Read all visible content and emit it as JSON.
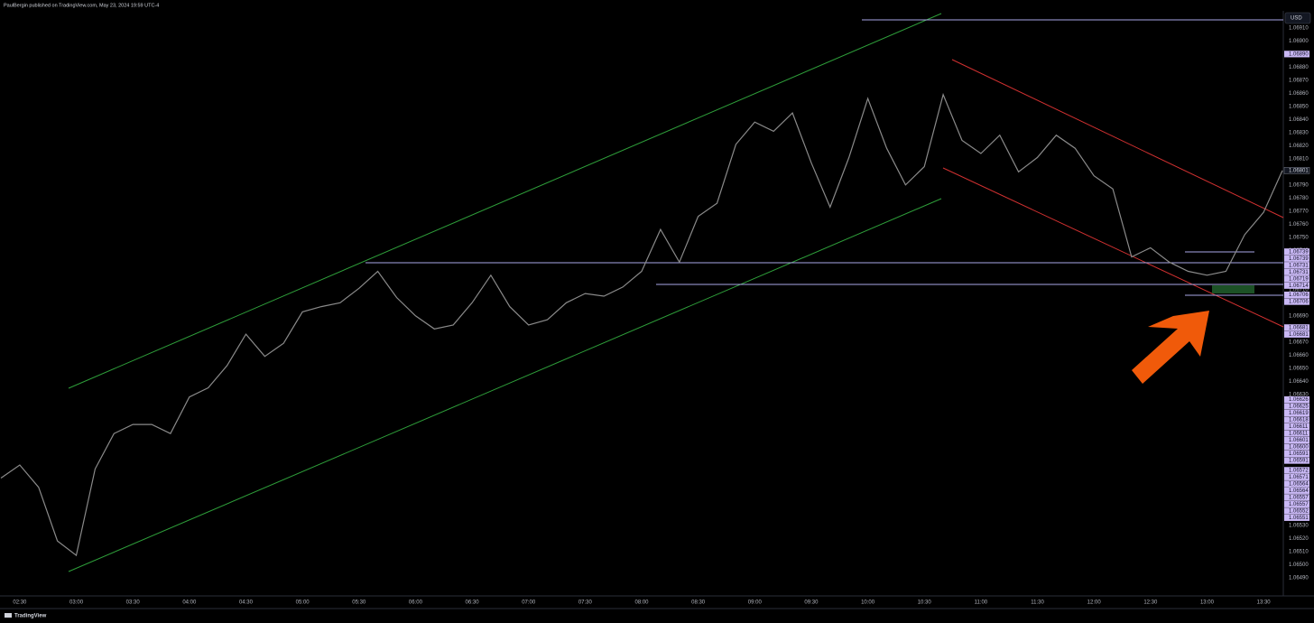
{
  "header": {
    "text": "PaulBergin published on TradingView.com, May 23, 2024 19:59 UTC-4"
  },
  "footer": {
    "brand": "TradingView"
  },
  "chart_data": {
    "type": "line",
    "currency": "USD",
    "color": "#8a8a8a",
    "x": [
      "02:20",
      "02:30",
      "02:40",
      "02:50",
      "03:00",
      "03:10",
      "03:20",
      "03:30",
      "03:40",
      "03:50",
      "04:00",
      "04:10",
      "04:20",
      "04:30",
      "04:40",
      "04:50",
      "05:00",
      "05:10",
      "05:20",
      "05:30",
      "05:40",
      "05:50",
      "06:00",
      "06:10",
      "06:20",
      "06:30",
      "06:40",
      "06:50",
      "07:00",
      "07:10",
      "07:20",
      "07:30",
      "07:40",
      "07:50",
      "08:00",
      "08:10",
      "08:20",
      "08:30",
      "08:40",
      "08:50",
      "09:00",
      "09:10",
      "09:20",
      "09:30",
      "09:40",
      "09:50",
      "10:00",
      "10:10",
      "10:20",
      "10:30",
      "10:40",
      "10:50",
      "11:00",
      "11:10",
      "11:20",
      "11:30",
      "11:40",
      "11:50",
      "12:00",
      "12:10",
      "12:20",
      "12:30",
      "12:40",
      "12:50",
      "13:00",
      "13:10",
      "13:20",
      "13:30",
      "13:40"
    ],
    "values": [
      1.06566,
      1.06576,
      1.06559,
      1.06518,
      1.06507,
      1.06573,
      1.066,
      1.06607,
      1.06607,
      1.066,
      1.06628,
      1.06635,
      1.06652,
      1.06676,
      1.06659,
      1.06669,
      1.06693,
      1.06697,
      1.067,
      1.06711,
      1.06724,
      1.06704,
      1.0669,
      1.0668,
      1.06683,
      1.067,
      1.06721,
      1.06697,
      1.06683,
      1.06687,
      1.067,
      1.06707,
      1.06705,
      1.06712,
      1.06724,
      1.06756,
      1.06731,
      1.06766,
      1.06776,
      1.06821,
      1.06838,
      1.06831,
      1.06845,
      1.06807,
      1.06773,
      1.06811,
      1.06856,
      1.06818,
      1.0679,
      1.06804,
      1.06859,
      1.06824,
      1.06814,
      1.06828,
      1.068,
      1.06811,
      1.06828,
      1.06818,
      1.06797,
      1.06787,
      1.06735,
      1.06742,
      1.06731,
      1.06724,
      1.06721,
      1.06724,
      1.06752,
      1.06769,
      1.06801
    ],
    "xlim": [
      "02:20",
      "13:40"
    ],
    "xticks": [
      "02:30",
      "03:00",
      "03:30",
      "04:00",
      "04:30",
      "05:00",
      "05:30",
      "06:00",
      "06:30",
      "07:00",
      "07:30",
      "08:00",
      "08:30",
      "09:00",
      "09:30",
      "10:00",
      "10:30",
      "11:00",
      "11:30",
      "12:00",
      "12:30",
      "13:00",
      "13:30"
    ],
    "ylim": [
      1.06476,
      1.06923
    ],
    "yticks": [
      {
        "value": 1.0691,
        "label": "1.06910"
      },
      {
        "value": 1.069,
        "label": "1.06900"
      },
      {
        "value": 1.0689,
        "label": "1.06890"
      },
      {
        "value": 1.0688,
        "label": "1.06880"
      },
      {
        "value": 1.0687,
        "label": "1.06870"
      },
      {
        "value": 1.0686,
        "label": "1.06860"
      },
      {
        "value": 1.0685,
        "label": "1.06850"
      },
      {
        "value": 1.0684,
        "label": "1.06840"
      },
      {
        "value": 1.0683,
        "label": "1.06830"
      },
      {
        "value": 1.0682,
        "label": "1.06820"
      },
      {
        "value": 1.0681,
        "label": "1.06810"
      },
      {
        "value": 1.068,
        "label": "1.06800"
      },
      {
        "value": 1.0679,
        "label": "1.06790"
      },
      {
        "value": 1.0678,
        "label": "1.06780"
      },
      {
        "value": 1.0677,
        "label": "1.06770"
      },
      {
        "value": 1.0676,
        "label": "1.06760"
      },
      {
        "value": 1.0675,
        "label": "1.06750"
      },
      {
        "value": 1.0674,
        "label": "1.06740"
      },
      {
        "value": 1.0673,
        "label": "1.06730"
      },
      {
        "value": 1.0672,
        "label": "1.06720"
      },
      {
        "value": 1.0671,
        "label": "1.06710"
      },
      {
        "value": 1.067,
        "label": "1.06700"
      },
      {
        "value": 1.0669,
        "label": "1.06690"
      },
      {
        "value": 1.0668,
        "label": "1.06680"
      },
      {
        "value": 1.0667,
        "label": "1.06670"
      },
      {
        "value": 1.0666,
        "label": "1.06660"
      },
      {
        "value": 1.0665,
        "label": "1.06650"
      },
      {
        "value": 1.0664,
        "label": "1.06640"
      },
      {
        "value": 1.0663,
        "label": "1.06630"
      },
      {
        "value": 1.0662,
        "label": "1.06620"
      },
      {
        "value": 1.0661,
        "label": "1.06610"
      },
      {
        "value": 1.066,
        "label": "1.06600"
      },
      {
        "value": 1.0659,
        "label": "1.06590"
      },
      {
        "value": 1.0658,
        "label": "1.06580"
      },
      {
        "value": 1.0657,
        "label": "1.06570"
      },
      {
        "value": 1.0656,
        "label": "1.06560"
      },
      {
        "value": 1.0655,
        "label": "1.06550"
      },
      {
        "value": 1.0654,
        "label": "1.06540"
      },
      {
        "value": 1.0653,
        "label": "1.06530"
      },
      {
        "value": 1.0652,
        "label": "1.06520"
      },
      {
        "value": 1.0651,
        "label": "1.06510"
      },
      {
        "value": 1.065,
        "label": "1.06500"
      },
      {
        "value": 1.0649,
        "label": "1.06490"
      }
    ],
    "price_labels": [
      {
        "value": 1.0689,
        "label": "1.06890"
      },
      {
        "value": 1.06739,
        "label": "1.06739"
      },
      {
        "value": 1.06739,
        "label": "1.06739"
      },
      {
        "value": 1.06731,
        "label": "1.06731"
      },
      {
        "value": 1.06731,
        "label": "1.06731"
      },
      {
        "value": 1.06719,
        "label": "1.06719"
      },
      {
        "value": 1.06714,
        "label": "1.06714"
      },
      {
        "value": 1.06706,
        "label": "1.06706"
      },
      {
        "value": 1.06706,
        "label": "1.06706"
      },
      {
        "value": 1.06681,
        "label": "1.06681"
      },
      {
        "value": 1.06681,
        "label": "1.06681"
      },
      {
        "value": 1.06626,
        "label": "1.06626"
      },
      {
        "value": 1.06625,
        "label": "1.06625"
      },
      {
        "value": 1.06619,
        "label": "1.06619"
      },
      {
        "value": 1.06618,
        "label": "1.06618"
      },
      {
        "value": 1.06611,
        "label": "1.06611"
      },
      {
        "value": 1.06611,
        "label": "1.06611"
      },
      {
        "value": 1.06601,
        "label": "1.06601"
      },
      {
        "value": 1.066,
        "label": "1.06600"
      },
      {
        "value": 1.06591,
        "label": "1.06591"
      },
      {
        "value": 1.06591,
        "label": "1.06591"
      },
      {
        "value": 1.06572,
        "label": "1.06572"
      },
      {
        "value": 1.06571,
        "label": "1.06571"
      },
      {
        "value": 1.06564,
        "label": "1.06564"
      },
      {
        "value": 1.06564,
        "label": "1.06564"
      },
      {
        "value": 1.06557,
        "label": "1.06557"
      },
      {
        "value": 1.06557,
        "label": "1.06557"
      },
      {
        "value": 1.06552,
        "label": "1.06552"
      },
      {
        "value": 1.06551,
        "label": "1.06551"
      }
    ],
    "last_price": {
      "value": 1.06801,
      "label": "1.06801"
    }
  }
}
